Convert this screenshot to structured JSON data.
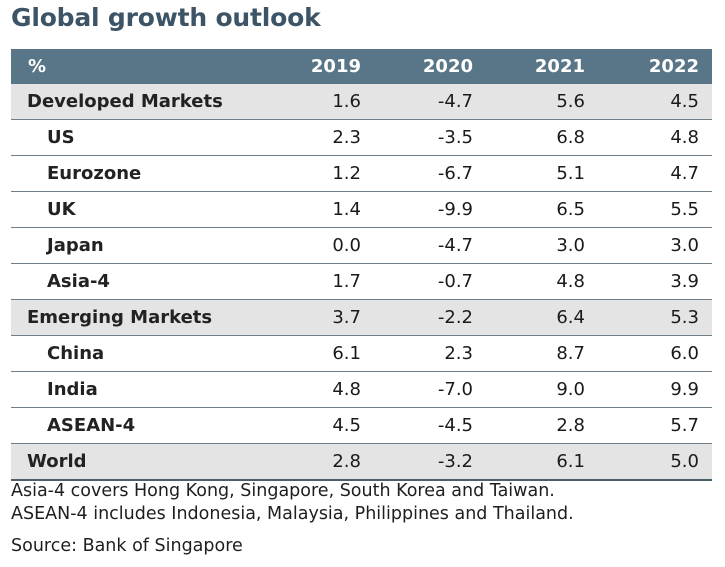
{
  "title": "Global growth outlook",
  "table": {
    "columns": [
      "%",
      "2019",
      "2020",
      "2021",
      "2022"
    ],
    "rows": [
      {
        "label": "Developed Markets",
        "values": [
          "1.6",
          "-4.7",
          "5.6",
          "4.5"
        ],
        "level": "group"
      },
      {
        "label": "US",
        "values": [
          "2.3",
          "-3.5",
          "6.8",
          "4.8"
        ],
        "level": "sub"
      },
      {
        "label": "Eurozone",
        "values": [
          "1.2",
          "-6.7",
          "5.1",
          "4.7"
        ],
        "level": "sub"
      },
      {
        "label": "UK",
        "values": [
          "1.4",
          "-9.9",
          "6.5",
          "5.5"
        ],
        "level": "sub"
      },
      {
        "label": "Japan",
        "values": [
          "0.0",
          "-4.7",
          "3.0",
          "3.0"
        ],
        "level": "sub"
      },
      {
        "label": "Asia-4",
        "values": [
          "1.7",
          "-0.7",
          "4.8",
          "3.9"
        ],
        "level": "sub"
      },
      {
        "label": "Emerging Markets",
        "values": [
          "3.7",
          "-2.2",
          "6.4",
          "5.3"
        ],
        "level": "group"
      },
      {
        "label": "China",
        "values": [
          "6.1",
          "2.3",
          "8.7",
          "6.0"
        ],
        "level": "sub"
      },
      {
        "label": "India",
        "values": [
          "4.8",
          "-7.0",
          "9.0",
          "9.9"
        ],
        "level": "sub"
      },
      {
        "label": "ASEAN-4",
        "values": [
          "4.5",
          "-4.5",
          "2.8",
          "5.7"
        ],
        "level": "sub"
      },
      {
        "label": "World",
        "values": [
          "2.8",
          "-3.2",
          "6.1",
          "5.0"
        ],
        "level": "total"
      }
    ]
  },
  "notes": [
    "Asia-4 covers Hong Kong, Singapore, South Korea and Taiwan.",
    "ASEAN-4 includes Indonesia, Malaysia, Philippines and Thailand."
  ],
  "source": "Source: Bank of Singapore"
}
